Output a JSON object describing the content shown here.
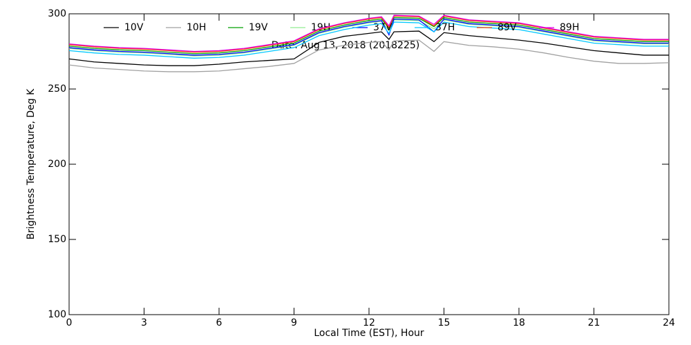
{
  "chart_data": {
    "type": "line",
    "xlabel": "Local Time (EST), Hour",
    "ylabel": "Brightness Temperature, Deg K",
    "annotation": "Date: Aug 13, 2018 (2018225)",
    "x": [
      0,
      1,
      2,
      3,
      4,
      5,
      6,
      7,
      8,
      9,
      10,
      11,
      12,
      12.5,
      12.8,
      13,
      14,
      14.6,
      15,
      16,
      17,
      18,
      19,
      20,
      21,
      22,
      23,
      24
    ],
    "xlim": [
      0,
      24
    ],
    "xticks": [
      0,
      3,
      6,
      9,
      12,
      15,
      18,
      21,
      24
    ],
    "ylim": [
      100,
      300
    ],
    "yticks": [
      100,
      150,
      200,
      250,
      300
    ],
    "series": [
      {
        "name": "10V",
        "color": "#000000",
        "values": [
          270,
          268,
          267,
          266,
          265.5,
          265.5,
          266.5,
          268,
          269,
          270,
          281,
          285,
          287,
          288,
          283,
          288,
          288.5,
          281.5,
          287.5,
          285.5,
          284,
          282.5,
          280.5,
          278,
          275.5,
          274,
          272.5,
          272.5
        ]
      },
      {
        "name": "10H",
        "color": "#a0a0a0",
        "values": [
          266,
          264,
          263,
          262,
          261.5,
          261.5,
          262,
          263.5,
          265,
          267,
          276,
          279,
          281,
          281.5,
          276,
          282,
          282.5,
          275,
          281.5,
          279,
          278,
          276.5,
          274,
          271,
          268.5,
          267,
          267,
          267.5
        ]
      },
      {
        "name": "19V",
        "color": "#00a000",
        "values": [
          278.5,
          277,
          276,
          275.5,
          274.5,
          273.5,
          274,
          275.5,
          278,
          280.5,
          288.5,
          292.5,
          295.5,
          296.5,
          290.5,
          297.5,
          297,
          291.5,
          297.5,
          294.5,
          293.5,
          292.5,
          289.5,
          286.5,
          283.5,
          282.5,
          281.5,
          281.5
        ]
      },
      {
        "name": "19H",
        "color": "#90ee90",
        "values": [
          277,
          275.5,
          274.5,
          274,
          273,
          272,
          272.5,
          274,
          276.5,
          279,
          287,
          291,
          294,
          295,
          289,
          296,
          295.5,
          290,
          296,
          293,
          292,
          291,
          288,
          285,
          282,
          281,
          280,
          280
        ]
      },
      {
        "name": "37V",
        "color": "#0000ff",
        "values": [
          277.5,
          276,
          275,
          274.5,
          273.5,
          272.5,
          273,
          274.5,
          277,
          279.5,
          287.5,
          291.5,
          294.5,
          295.5,
          286,
          296.5,
          296,
          288,
          296.5,
          293.5,
          292.5,
          291.5,
          288.5,
          285.5,
          282.5,
          281.5,
          280.5,
          280.5
        ]
      },
      {
        "name": "37H",
        "color": "#00c8ff",
        "values": [
          275.5,
          274,
          273,
          272.5,
          271.5,
          270.5,
          271,
          272.5,
          275,
          277.5,
          285.5,
          289.5,
          292.5,
          293.5,
          287,
          294.5,
          294,
          288,
          294.5,
          291.5,
          290.5,
          289.5,
          286.5,
          283.5,
          280.5,
          279.5,
          278.5,
          278.5
        ]
      },
      {
        "name": "89V",
        "color": "#ff4000",
        "values": [
          279.5,
          278,
          277,
          276.5,
          275.5,
          274.5,
          275,
          276.5,
          279,
          281.5,
          289.5,
          293.5,
          296.5,
          297.5,
          291,
          298.5,
          298,
          292,
          298.5,
          295.5,
          294.5,
          293.5,
          290.5,
          287.5,
          284.5,
          283.5,
          282.5,
          282.5
        ]
      },
      {
        "name": "89H",
        "color": "#e000e0",
        "values": [
          280,
          278.5,
          277.5,
          277,
          276,
          275,
          275.5,
          277,
          279.5,
          282,
          290,
          294,
          297,
          298,
          292,
          299,
          298.5,
          293,
          299,
          296,
          295,
          294,
          291,
          288,
          285,
          284,
          283,
          283
        ]
      }
    ]
  }
}
